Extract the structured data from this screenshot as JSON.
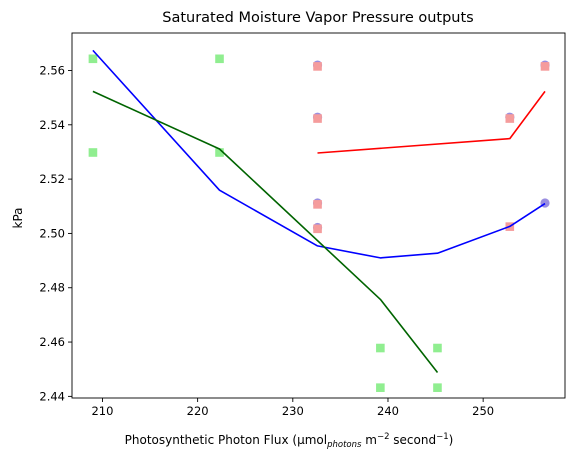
{
  "chart_data": {
    "type": "scatter",
    "title": "Saturated Moisture Vapor Pressure outputs",
    "xlabel_main": "Photosynthetic Photon Flux (µmol",
    "xlabel_sub": "photons",
    "xlabel_mid": " m",
    "xlabel_sup1": "−2",
    "xlabel_end": " second",
    "xlabel_sup2": "−1",
    "xlabel_close": ")",
    "ylabel": "kPa",
    "xlim": [
      206.8,
      258.6
    ],
    "ylim": [
      2.4394,
      2.5738
    ],
    "xticks": [
      210,
      220,
      230,
      240,
      250
    ],
    "xtick_labels": [
      "210",
      "220",
      "230",
      "240",
      "250"
    ],
    "yticks": [
      2.44,
      2.46,
      2.48,
      2.5,
      2.52,
      2.54,
      2.56
    ],
    "ytick_labels": [
      "2.44",
      "2.46",
      "2.48",
      "2.50",
      "2.52",
      "2.54",
      "2.56"
    ],
    "colors": {
      "purple_points": "#9a8ee0",
      "pink_points": "#f59c9c",
      "green_points": "#90ee90",
      "red_line": "#ff0000",
      "blue_line": "#0000ff",
      "green_line": "#006400"
    },
    "scatter_series": [
      {
        "marker": "circle",
        "color_key": "purple_points",
        "points": [
          [
            232.6,
            2.562
          ],
          [
            232.6,
            2.5428
          ],
          [
            232.6,
            2.5112
          ],
          [
            232.6,
            2.5022
          ],
          [
            252.8,
            2.5428
          ],
          [
            256.5,
            2.562
          ],
          [
            256.5,
            2.5112
          ]
        ]
      },
      {
        "marker": "square",
        "color_key": "pink_points",
        "points": [
          [
            232.6,
            2.5615
          ],
          [
            232.6,
            2.5423
          ],
          [
            232.6,
            2.5107
          ],
          [
            232.6,
            2.5017
          ],
          [
            252.8,
            2.5423
          ],
          [
            252.8,
            2.5025
          ],
          [
            256.5,
            2.5615
          ]
        ]
      },
      {
        "marker": "square",
        "color_key": "green_points",
        "points": [
          [
            209.0,
            2.5643
          ],
          [
            209.0,
            2.5298
          ],
          [
            222.3,
            2.5643
          ],
          [
            222.3,
            2.5298
          ],
          [
            239.2,
            2.4578
          ],
          [
            239.2,
            2.4432
          ],
          [
            245.2,
            2.4578
          ],
          [
            245.2,
            2.4432
          ]
        ]
      }
    ],
    "line_series": [
      {
        "color_key": "red_line",
        "x": [
          232.6,
          252.8,
          256.5
        ],
        "y": [
          2.5296,
          2.5349,
          2.5523
        ]
      },
      {
        "color_key": "blue_line",
        "x": [
          209.0,
          222.3,
          232.6,
          239.2,
          245.2,
          252.8,
          256.5
        ],
        "y": [
          2.5674,
          2.5159,
          2.4954,
          2.491,
          2.4927,
          2.5026,
          2.511
        ]
      },
      {
        "color_key": "green_line",
        "x": [
          209.0,
          222.3,
          239.2,
          245.2
        ],
        "y": [
          2.5523,
          2.5311,
          2.4757,
          2.4488
        ]
      }
    ]
  }
}
